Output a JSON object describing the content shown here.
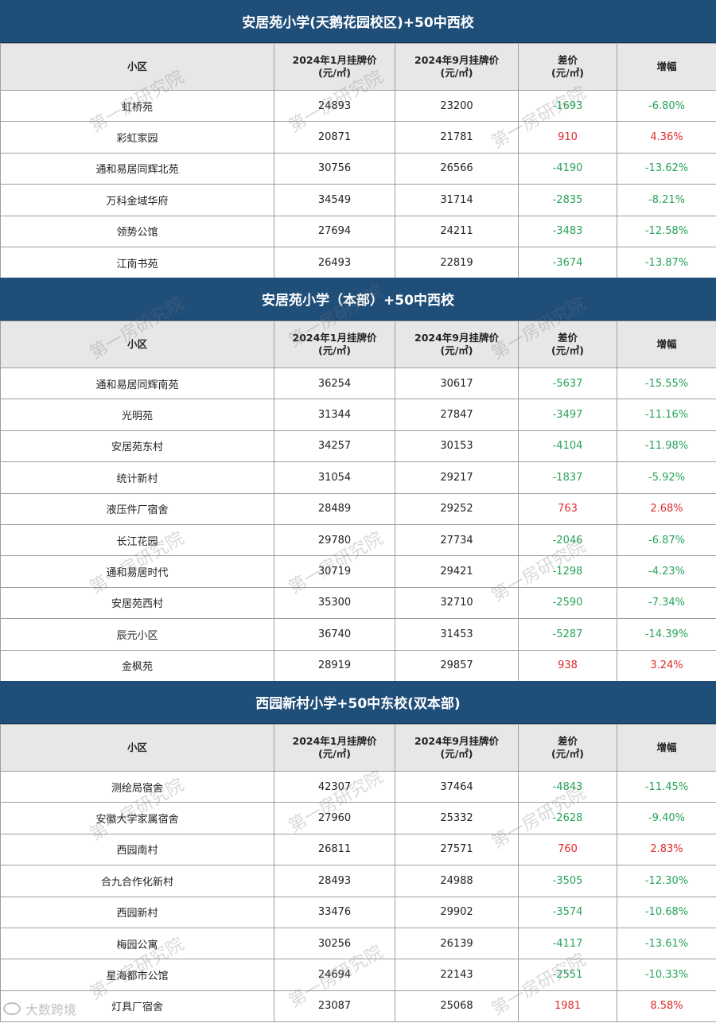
{
  "headers": [
    "小区",
    "2024年1月挂牌价\n(元/㎡)",
    "2024年9月挂牌价\n(元/㎡)",
    "差价\n(元/㎡)",
    "增幅"
  ],
  "sections": [
    {
      "title": "安居苑小学(天鹅花园校区)+50中西校",
      "rows": [
        {
          "name": "虹桥苑",
          "jan": "24893",
          "sep": "23200",
          "diff": "-1693",
          "rate": "-6.80%",
          "dir": "neg"
        },
        {
          "name": "彩虹家园",
          "jan": "20871",
          "sep": "21781",
          "diff": "910",
          "rate": "4.36%",
          "dir": "pos"
        },
        {
          "name": "通和易居同辉北苑",
          "jan": "30756",
          "sep": "26566",
          "diff": "-4190",
          "rate": "-13.62%",
          "dir": "neg"
        },
        {
          "name": "万科金域华府",
          "jan": "34549",
          "sep": "31714",
          "diff": "-2835",
          "rate": "-8.21%",
          "dir": "neg"
        },
        {
          "name": "领势公馆",
          "jan": "27694",
          "sep": "24211",
          "diff": "-3483",
          "rate": "-12.58%",
          "dir": "neg"
        },
        {
          "name": "江南书苑",
          "jan": "26493",
          "sep": "22819",
          "diff": "-3674",
          "rate": "-13.87%",
          "dir": "neg"
        }
      ]
    },
    {
      "title": "安居苑小学（本部）+50中西校",
      "rows": [
        {
          "name": "通和易居同辉南苑",
          "jan": "36254",
          "sep": "30617",
          "diff": "-5637",
          "rate": "-15.55%",
          "dir": "neg"
        },
        {
          "name": "光明苑",
          "jan": "31344",
          "sep": "27847",
          "diff": "-3497",
          "rate": "-11.16%",
          "dir": "neg"
        },
        {
          "name": "安居苑东村",
          "jan": "34257",
          "sep": "30153",
          "diff": "-4104",
          "rate": "-11.98%",
          "dir": "neg"
        },
        {
          "name": "统计新村",
          "jan": "31054",
          "sep": "29217",
          "diff": "-1837",
          "rate": "-5.92%",
          "dir": "neg"
        },
        {
          "name": "液压件厂宿舍",
          "jan": "28489",
          "sep": "29252",
          "diff": "763",
          "rate": "2.68%",
          "dir": "pos"
        },
        {
          "name": "长江花园",
          "jan": "29780",
          "sep": "27734",
          "diff": "-2046",
          "rate": "-6.87%",
          "dir": "neg"
        },
        {
          "name": "通和易居时代",
          "jan": "30719",
          "sep": "29421",
          "diff": "-1298",
          "rate": "-4.23%",
          "dir": "neg"
        },
        {
          "name": "安居苑西村",
          "jan": "35300",
          "sep": "32710",
          "diff": "-2590",
          "rate": "-7.34%",
          "dir": "neg"
        },
        {
          "name": "辰元小区",
          "jan": "36740",
          "sep": "31453",
          "diff": "-5287",
          "rate": "-14.39%",
          "dir": "neg"
        },
        {
          "name": "金枫苑",
          "jan": "28919",
          "sep": "29857",
          "diff": "938",
          "rate": "3.24%",
          "dir": "pos"
        }
      ]
    },
    {
      "title": "西园新村小学+50中东校(双本部)",
      "rows": [
        {
          "name": "测绘局宿舍",
          "jan": "42307",
          "sep": "37464",
          "diff": "-4843",
          "rate": "-11.45%",
          "dir": "neg"
        },
        {
          "name": "安徽大学家属宿舍",
          "jan": "27960",
          "sep": "25332",
          "diff": "-2628",
          "rate": "-9.40%",
          "dir": "neg"
        },
        {
          "name": "西园南村",
          "jan": "26811",
          "sep": "27571",
          "diff": "760",
          "rate": "2.83%",
          "dir": "pos"
        },
        {
          "name": "合九合作化新村",
          "jan": "28493",
          "sep": "24988",
          "diff": "-3505",
          "rate": "-12.30%",
          "dir": "neg"
        },
        {
          "name": "西园新村",
          "jan": "33476",
          "sep": "29902",
          "diff": "-3574",
          "rate": "-10.68%",
          "dir": "neg"
        },
        {
          "name": "梅园公寓",
          "jan": "30256",
          "sep": "26139",
          "diff": "-4117",
          "rate": "-13.61%",
          "dir": "neg"
        },
        {
          "name": "星海都市公馆",
          "jan": "24694",
          "sep": "22143",
          "diff": "-2551",
          "rate": "-10.33%",
          "dir": "neg"
        },
        {
          "name": "灯具厂宿舍",
          "jan": "23087",
          "sep": "25068",
          "diff": "1981",
          "rate": "8.58%",
          "dir": "pos"
        }
      ]
    }
  ],
  "watermark": "第一房研究院",
  "logo": "大数跨境",
  "colors": {
    "header_bg": "#1f4e79",
    "negative": "#27a35a",
    "positive": "#e02b2b",
    "thead_bg": "#e7e7e7"
  }
}
